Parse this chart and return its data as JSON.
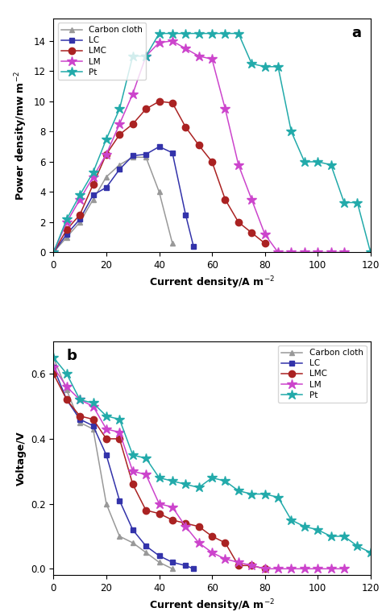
{
  "colors": {
    "Carbon cloth": "#999999",
    "LC": "#3333aa",
    "LMC": "#aa2222",
    "LM": "#cc44cc",
    "Pt": "#22aaaa"
  },
  "markers": {
    "Carbon cloth": "^",
    "LC": "s",
    "LMC": "o",
    "LM": "*",
    "Pt": "*"
  },
  "marker_sizes": {
    "Carbon cloth": 5,
    "LC": 5,
    "LMC": 6,
    "LM": 9,
    "Pt": 9
  },
  "legend_order": [
    "Carbon cloth",
    "LC",
    "LMC",
    "LM",
    "Pt"
  ],
  "panel_a": {
    "xlabel": "Current density/A m$^{-2}$",
    "ylabel": "Power density/mw m$^{-2}$",
    "label": "a",
    "xlim": [
      0,
      120
    ],
    "ylim": [
      0,
      15.5
    ],
    "yticks": [
      0,
      2,
      4,
      6,
      8,
      10,
      12,
      14
    ],
    "xticks": [
      0,
      20,
      40,
      60,
      80,
      100,
      120
    ],
    "series": {
      "Carbon cloth": {
        "x": [
          0,
          5,
          10,
          15,
          20,
          25,
          30,
          35,
          40,
          45
        ],
        "y": [
          0,
          1.0,
          2.0,
          3.5,
          5.0,
          5.8,
          6.3,
          6.3,
          4.0,
          0.6
        ]
      },
      "LC": {
        "x": [
          0,
          5,
          10,
          15,
          20,
          25,
          30,
          35,
          40,
          45,
          50,
          53
        ],
        "y": [
          0,
          1.2,
          2.2,
          3.8,
          4.3,
          5.5,
          6.4,
          6.5,
          7.0,
          6.6,
          2.5,
          0.4
        ]
      },
      "LMC": {
        "x": [
          0,
          5,
          10,
          15,
          20,
          25,
          30,
          35,
          40,
          45,
          50,
          55,
          60,
          65,
          70,
          75,
          80
        ],
        "y": [
          0,
          1.5,
          2.5,
          4.5,
          6.5,
          7.8,
          8.5,
          9.5,
          10.0,
          9.9,
          8.3,
          7.1,
          6.0,
          3.5,
          2.0,
          1.3,
          0.6
        ]
      },
      "LM": {
        "x": [
          0,
          5,
          10,
          15,
          20,
          25,
          30,
          35,
          40,
          45,
          50,
          55,
          60,
          65,
          70,
          75,
          80,
          85,
          90,
          95,
          100,
          105,
          110
        ],
        "y": [
          0,
          2.0,
          3.5,
          5.0,
          6.5,
          8.5,
          10.5,
          13.0,
          13.9,
          14.0,
          13.5,
          13.0,
          12.8,
          9.5,
          5.8,
          3.5,
          1.2,
          0.0,
          0.0,
          0.0,
          0.0,
          0.0,
          0.0
        ]
      },
      "Pt": {
        "x": [
          0,
          5,
          10,
          15,
          20,
          25,
          30,
          35,
          40,
          45,
          50,
          55,
          60,
          65,
          70,
          75,
          80,
          85,
          90,
          95,
          100,
          105,
          110,
          115,
          120
        ],
        "y": [
          0,
          2.2,
          3.8,
          5.3,
          7.5,
          9.5,
          13.0,
          13.0,
          14.5,
          14.5,
          14.5,
          14.5,
          14.5,
          14.5,
          14.5,
          12.5,
          12.3,
          12.3,
          8.0,
          6.0,
          6.0,
          5.8,
          3.3,
          3.3,
          0.0
        ]
      }
    }
  },
  "panel_b": {
    "xlabel": "Current density/A m$^{-2}$",
    "ylabel": "Voltage/V",
    "label": "b",
    "xlim": [
      0,
      120
    ],
    "ylim": [
      -0.02,
      0.7
    ],
    "yticks": [
      0.0,
      0.2,
      0.4,
      0.6
    ],
    "xticks": [
      0,
      20,
      40,
      60,
      80,
      100,
      120
    ],
    "series": {
      "Carbon cloth": {
        "x": [
          0,
          5,
          10,
          15,
          20,
          25,
          30,
          35,
          40,
          45
        ],
        "y": [
          0.65,
          0.55,
          0.45,
          0.43,
          0.2,
          0.1,
          0.08,
          0.05,
          0.02,
          0.0
        ]
      },
      "LC": {
        "x": [
          0,
          5,
          10,
          15,
          20,
          25,
          30,
          35,
          40,
          45,
          50,
          53
        ],
        "y": [
          0.62,
          0.52,
          0.46,
          0.44,
          0.35,
          0.21,
          0.12,
          0.07,
          0.04,
          0.02,
          0.01,
          0.0
        ]
      },
      "LMC": {
        "x": [
          0,
          5,
          10,
          15,
          20,
          25,
          30,
          35,
          40,
          45,
          50,
          55,
          60,
          65,
          70,
          75,
          80
        ],
        "y": [
          0.6,
          0.52,
          0.47,
          0.46,
          0.4,
          0.4,
          0.26,
          0.18,
          0.17,
          0.15,
          0.14,
          0.13,
          0.1,
          0.08,
          0.01,
          0.01,
          0.0
        ]
      },
      "LM": {
        "x": [
          0,
          5,
          10,
          15,
          20,
          25,
          30,
          35,
          40,
          45,
          50,
          55,
          60,
          65,
          70,
          75,
          80,
          85,
          90,
          95,
          100,
          105,
          110
        ],
        "y": [
          0.62,
          0.56,
          0.52,
          0.5,
          0.43,
          0.42,
          0.3,
          0.29,
          0.2,
          0.19,
          0.13,
          0.08,
          0.05,
          0.03,
          0.02,
          0.01,
          0.0,
          0.0,
          0.0,
          0.0,
          0.0,
          0.0,
          0.0
        ]
      },
      "Pt": {
        "x": [
          0,
          5,
          10,
          15,
          20,
          25,
          30,
          35,
          40,
          45,
          50,
          55,
          60,
          65,
          70,
          75,
          80,
          85,
          90,
          95,
          100,
          105,
          110,
          115,
          120
        ],
        "y": [
          0.65,
          0.6,
          0.52,
          0.51,
          0.47,
          0.46,
          0.35,
          0.34,
          0.28,
          0.27,
          0.26,
          0.25,
          0.28,
          0.27,
          0.24,
          0.23,
          0.23,
          0.22,
          0.15,
          0.13,
          0.12,
          0.1,
          0.1,
          0.07,
          0.05
        ]
      }
    }
  }
}
